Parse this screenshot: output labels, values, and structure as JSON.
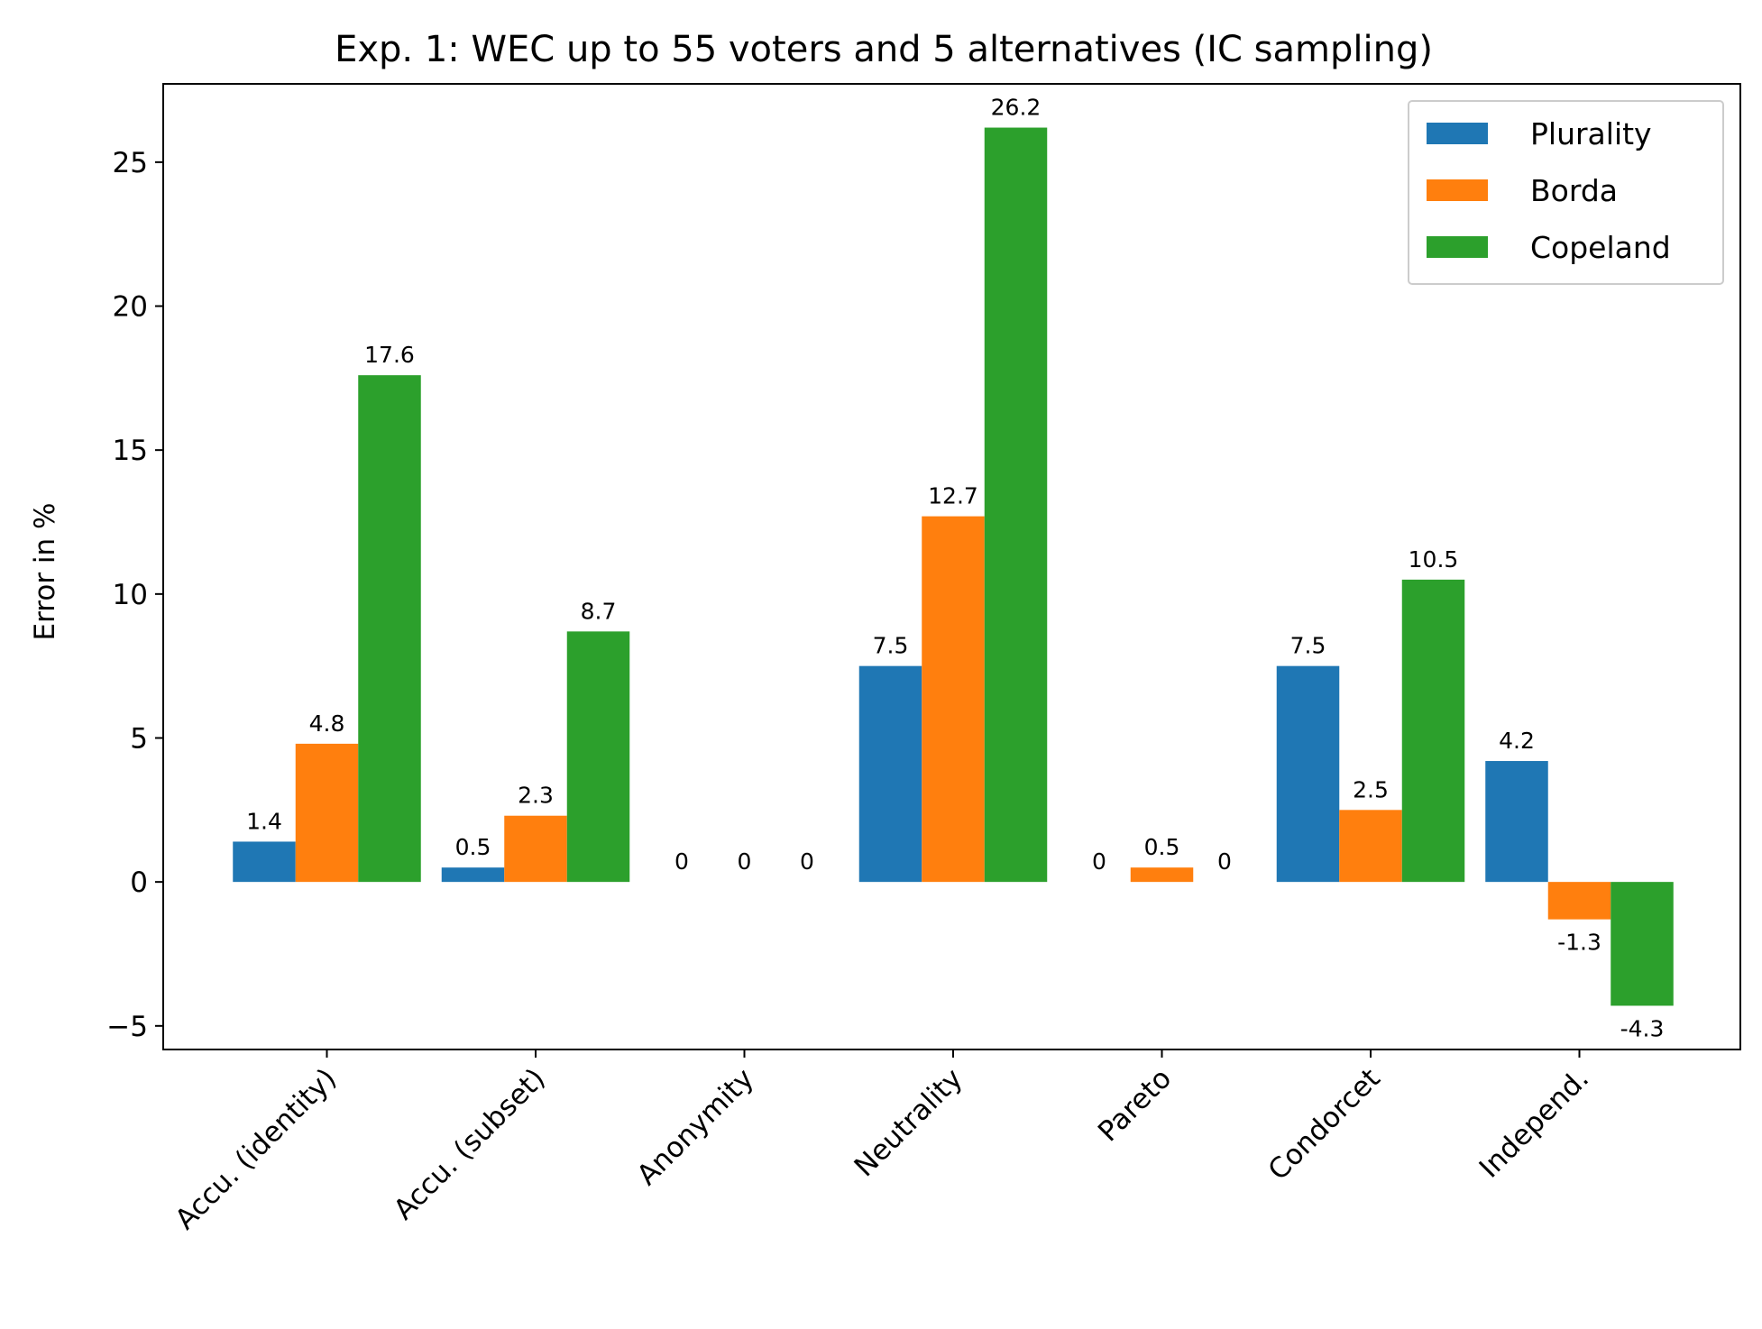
{
  "chart_data": {
    "type": "bar",
    "title": "Exp. 1: WEC up to 55 voters and 5 alternatives (IC sampling)",
    "xlabel": "",
    "ylabel": "Error in %",
    "categories": [
      "Accu. (identity)",
      "Accu. (subset)",
      "Anonymity",
      "Neutrality",
      "Pareto",
      "Condorcet",
      "Independ."
    ],
    "series": [
      {
        "name": "Plurality",
        "color": "#1f77b4",
        "values": [
          1.4,
          0.5,
          0,
          7.5,
          0,
          7.5,
          4.2
        ],
        "labels": [
          "1.4",
          "0.5",
          "0",
          "7.5",
          "0",
          "7.5",
          "4.2"
        ]
      },
      {
        "name": "Borda",
        "color": "#ff7f0e",
        "values": [
          4.8,
          2.3,
          0,
          12.7,
          0.5,
          2.5,
          -1.3
        ],
        "labels": [
          "4.8",
          "2.3",
          "0",
          "12.7",
          "0.5",
          "2.5",
          "-1.3"
        ]
      },
      {
        "name": "Copeland",
        "color": "#2ca02c",
        "values": [
          17.6,
          8.7,
          0,
          26.2,
          0,
          10.5,
          -4.3
        ],
        "labels": [
          "17.6",
          "8.7",
          "0",
          "26.2",
          "0",
          "10.5",
          "-4.3"
        ]
      }
    ],
    "ylim": [
      -5.82,
      27.72
    ],
    "yticks": [
      -5,
      0,
      5,
      10,
      15,
      20,
      25
    ],
    "ytick_labels": [
      "−5",
      "0",
      "5",
      "10",
      "15",
      "20",
      "25"
    ],
    "legend_position": "top-right",
    "grid": false
  }
}
